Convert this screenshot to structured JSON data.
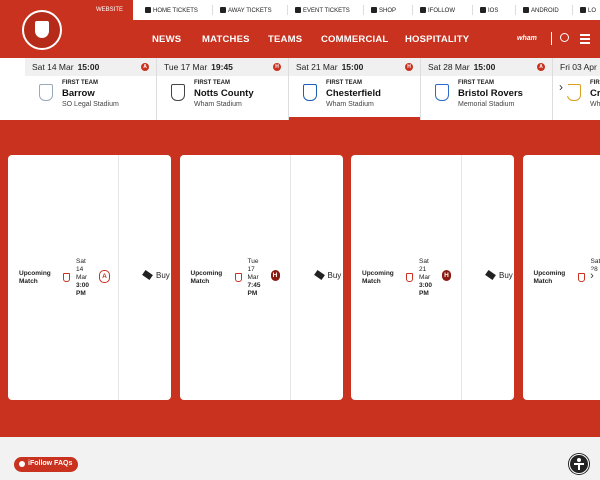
{
  "header": {
    "website": "WEBSITE",
    "top_links": [
      "HOME TICKETS",
      "AWAY TICKETS",
      "EVENT TICKETS",
      "SHOP",
      "IFOLLOW",
      "IOS",
      "ANDROID",
      "LO"
    ],
    "main_nav": [
      "NEWS",
      "MATCHES",
      "TEAMS",
      "COMMERCIAL",
      "HOSPITALITY"
    ],
    "sponsor": "wham"
  },
  "fixtures": [
    {
      "date": "Sat 14 Mar",
      "time": "15:00",
      "venue": "A",
      "team": "FIRST TEAM",
      "opponent": "Barrow",
      "stadium": "SO Legal Stadium"
    },
    {
      "date": "Tue 17 Mar",
      "time": "19:45",
      "venue": "H",
      "team": "FIRST TEAM",
      "opponent": "Notts County",
      "stadium": "Wham Stadium"
    },
    {
      "date": "Sat 21 Mar",
      "time": "15:00",
      "venue": "H",
      "team": "FIRST TEAM",
      "opponent": "Chesterfield",
      "stadium": "Wham Stadium"
    },
    {
      "date": "Sat 28 Mar",
      "time": "15:00",
      "venue": "A",
      "team": "FIRST TEAM",
      "opponent": "Bristol Rovers",
      "stadium": "Memorial Stadium"
    },
    {
      "date": "Fri 03 Apr",
      "team": "FIRST TEAM",
      "opponent": "Cr",
      "stadium": "Wh"
    }
  ],
  "match_cards": [
    {
      "label": "Upcoming Match",
      "date": [
        "Sat",
        "14",
        "Mar",
        "3:00",
        "PM"
      ],
      "venue": "A",
      "action": "Buy"
    },
    {
      "label": "Upcoming Match",
      "date": [
        "Tue",
        "17",
        "Mar",
        "7:45",
        "PM"
      ],
      "venue": "H",
      "action": "Buy"
    },
    {
      "label": "Upcoming Match",
      "date": [
        "Sat",
        "21",
        "Mar",
        "3:00",
        "PM"
      ],
      "venue": "H",
      "action": "Buy"
    },
    {
      "label": "Upcoming Match",
      "date": [
        "Sat",
        "28"
      ]
    }
  ],
  "footer": {
    "faq": "iFollow FAQs"
  }
}
